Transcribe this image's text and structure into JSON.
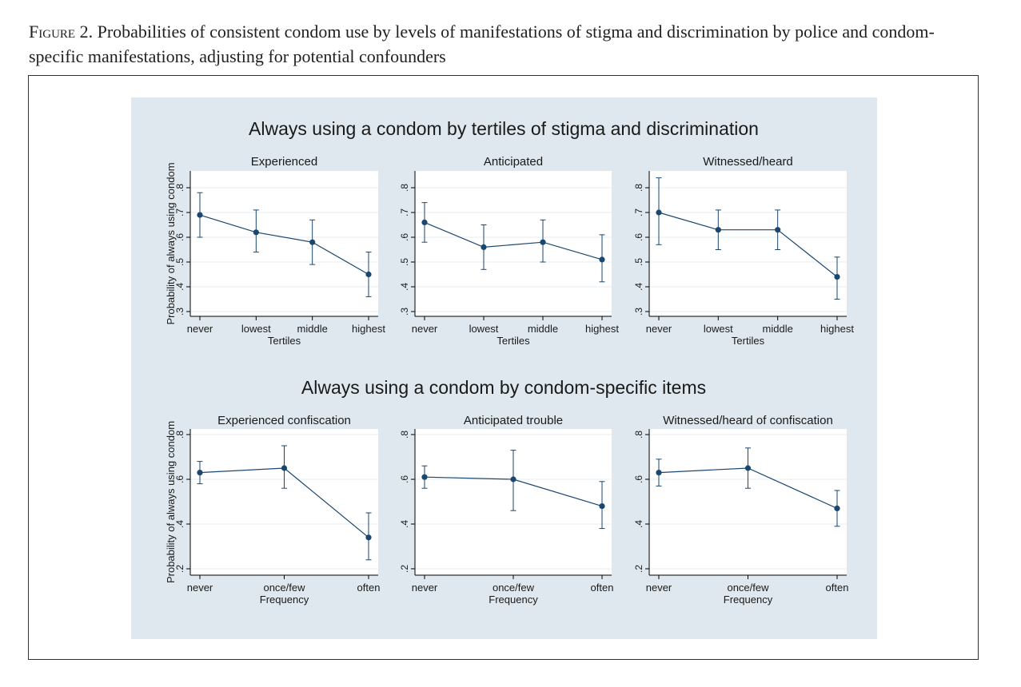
{
  "figure_caption": {
    "label": "Figure 2.",
    "text": "Probabilities of consistent condom use by levels of manifestations of stigma and discrimination by police and condom-specific manifestations, adjusting for potential confounders"
  },
  "colors": {
    "panel_bg": "#dfe8ee",
    "plot_bg": "#ffffff",
    "line": "#1a476f",
    "grid": "#e6edf2",
    "text": "#1a1a1a"
  },
  "chart_data": [
    {
      "type": "line",
      "section_title": "Always using a condom by tertiles of stigma and discrimination",
      "title": "Experienced",
      "categories": [
        "never",
        "lowest",
        "middle",
        "highest"
      ],
      "xlabel": "Tertiles",
      "ylabel": "Probability of always using condom",
      "yticks": [
        ".3",
        ".4",
        ".5",
        ".6",
        ".7",
        ".8"
      ],
      "ylim": [
        0.3,
        0.85
      ],
      "values": [
        0.69,
        0.62,
        0.58,
        0.45
      ],
      "ci_low": [
        0.6,
        0.54,
        0.49,
        0.36
      ],
      "ci_high": [
        0.78,
        0.71,
        0.67,
        0.54
      ],
      "grid": true
    },
    {
      "type": "line",
      "title": "Anticipated",
      "categories": [
        "never",
        "lowest",
        "middle",
        "highest"
      ],
      "xlabel": "Tertiles",
      "ylabel": "",
      "yticks": [
        ".3",
        ".4",
        ".5",
        ".6",
        ".7",
        ".8"
      ],
      "ylim": [
        0.3,
        0.85
      ],
      "values": [
        0.66,
        0.56,
        0.58,
        0.51
      ],
      "ci_low": [
        0.58,
        0.47,
        0.5,
        0.42
      ],
      "ci_high": [
        0.74,
        0.65,
        0.67,
        0.61
      ],
      "grid": true
    },
    {
      "type": "line",
      "title": "Witnessed/heard",
      "categories": [
        "never",
        "lowest",
        "middle",
        "highest"
      ],
      "xlabel": "Tertiles",
      "ylabel": "",
      "yticks": [
        ".3",
        ".4",
        ".5",
        ".6",
        ".7",
        ".8"
      ],
      "ylim": [
        0.3,
        0.85
      ],
      "values": [
        0.7,
        0.63,
        0.63,
        0.44
      ],
      "ci_low": [
        0.57,
        0.55,
        0.55,
        0.35
      ],
      "ci_high": [
        0.84,
        0.71,
        0.71,
        0.52
      ],
      "grid": true
    },
    {
      "type": "line",
      "section_title": "Always using a condom by condom-specific items",
      "title": "Experienced confiscation",
      "categories": [
        "never",
        "once/few",
        "often"
      ],
      "xlabel": "Frequency",
      "ylabel": "Probability of always using condom",
      "yticks": [
        ".2",
        ".4",
        ".6",
        ".8"
      ],
      "ylim": [
        0.2,
        0.82
      ],
      "values": [
        0.63,
        0.65,
        0.34
      ],
      "ci_low": [
        0.58,
        0.56,
        0.24
      ],
      "ci_high": [
        0.68,
        0.75,
        0.45
      ],
      "grid": true
    },
    {
      "type": "line",
      "title": "Anticipated trouble",
      "categories": [
        "never",
        "once/few",
        "often"
      ],
      "xlabel": "Frequency",
      "ylabel": "",
      "yticks": [
        ".2",
        ".4",
        ".6",
        ".8"
      ],
      "ylim": [
        0.2,
        0.82
      ],
      "values": [
        0.61,
        0.6,
        0.48
      ],
      "ci_low": [
        0.56,
        0.46,
        0.38
      ],
      "ci_high": [
        0.66,
        0.73,
        0.59
      ],
      "grid": true
    },
    {
      "type": "line",
      "title": "Witnessed/heard of confiscation",
      "categories": [
        "never",
        "once/few",
        "often"
      ],
      "xlabel": "Frequency",
      "ylabel": "",
      "yticks": [
        ".2",
        ".4",
        ".6",
        ".8"
      ],
      "ylim": [
        0.2,
        0.82
      ],
      "values": [
        0.63,
        0.65,
        0.47
      ],
      "ci_low": [
        0.57,
        0.56,
        0.39
      ],
      "ci_high": [
        0.69,
        0.74,
        0.55
      ],
      "grid": true
    }
  ]
}
